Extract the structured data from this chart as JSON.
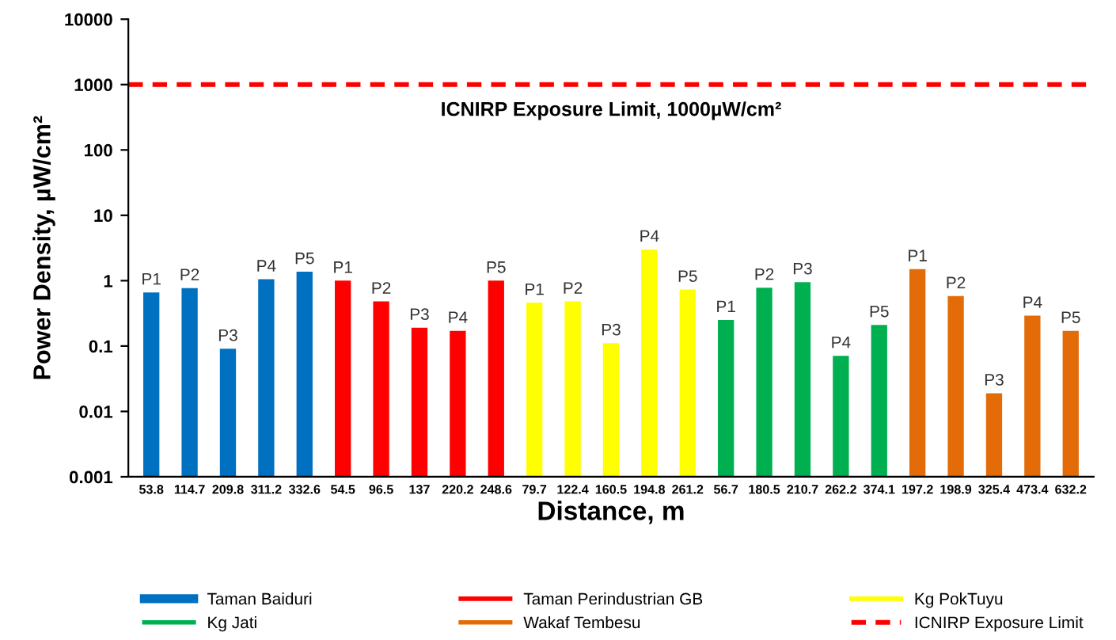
{
  "chart_data": {
    "type": "bar",
    "xlabel": "Distance, m",
    "ylabel": "Power Density, µW/cm²",
    "categories": [
      "53.8",
      "114.7",
      "209.8",
      "311.2",
      "332.6",
      "54.5",
      "96.5",
      "137",
      "220.2",
      "248.6",
      "79.7",
      "122.4",
      "160.5",
      "194.8",
      "261.2",
      "56.7",
      "180.5",
      "210.7",
      "262.2",
      "374.1",
      "197.2",
      "198.9",
      "325.4",
      "473.4",
      "632.2"
    ],
    "series": [
      {
        "name": "Taman Baiduri",
        "color": "#0070c0",
        "values": [
          0.66,
          0.77,
          0.09,
          1.05,
          1.37,
          null,
          null,
          null,
          null,
          null,
          null,
          null,
          null,
          null,
          null,
          null,
          null,
          null,
          null,
          null,
          null,
          null,
          null,
          null,
          null
        ],
        "value_labels": [
          "P1",
          "P2",
          "P3",
          "P4",
          "P5",
          null,
          null,
          null,
          null,
          null,
          null,
          null,
          null,
          null,
          null,
          null,
          null,
          null,
          null,
          null,
          null,
          null,
          null,
          null,
          null
        ]
      },
      {
        "name": "Taman Perindustrian GB",
        "color": "#ff0000",
        "values": [
          null,
          null,
          null,
          null,
          null,
          1.0,
          0.48,
          0.19,
          0.17,
          1.0,
          null,
          null,
          null,
          null,
          null,
          null,
          null,
          null,
          null,
          null,
          null,
          null,
          null,
          null,
          null
        ],
        "value_labels": [
          null,
          null,
          null,
          null,
          null,
          "P1",
          "P2",
          "P3",
          "P4",
          "P5",
          null,
          null,
          null,
          null,
          null,
          null,
          null,
          null,
          null,
          null,
          null,
          null,
          null,
          null,
          null
        ]
      },
      {
        "name": "Kg PokTuyu",
        "color": "#ffff00",
        "values": [
          null,
          null,
          null,
          null,
          null,
          null,
          null,
          null,
          null,
          null,
          0.46,
          0.48,
          0.11,
          3.0,
          0.73,
          null,
          null,
          null,
          null,
          null,
          null,
          null,
          null,
          null,
          null
        ],
        "value_labels": [
          null,
          null,
          null,
          null,
          null,
          null,
          null,
          null,
          null,
          null,
          "P1",
          "P2",
          "P3",
          "P4",
          "P5",
          null,
          null,
          null,
          null,
          null,
          null,
          null,
          null,
          null,
          null
        ]
      },
      {
        "name": "Kg Jati",
        "color": "#00b050",
        "values": [
          null,
          null,
          null,
          null,
          null,
          null,
          null,
          null,
          null,
          null,
          null,
          null,
          null,
          null,
          null,
          0.25,
          0.78,
          0.95,
          0.07,
          0.21,
          null,
          null,
          null,
          null,
          null
        ],
        "value_labels": [
          null,
          null,
          null,
          null,
          null,
          null,
          null,
          null,
          null,
          null,
          null,
          null,
          null,
          null,
          null,
          "P1",
          "P2",
          "P3",
          "P4",
          "P5",
          null,
          null,
          null,
          null,
          null
        ]
      },
      {
        "name": "Wakaf Tembesu",
        "color": "#e36c09",
        "values": [
          null,
          null,
          null,
          null,
          null,
          null,
          null,
          null,
          null,
          null,
          null,
          null,
          null,
          null,
          null,
          null,
          null,
          null,
          null,
          null,
          1.5,
          0.58,
          0.018,
          0.29,
          0.17
        ],
        "value_labels": [
          null,
          null,
          null,
          null,
          null,
          null,
          null,
          null,
          null,
          null,
          null,
          null,
          null,
          null,
          null,
          null,
          null,
          null,
          null,
          null,
          "P1",
          "P2",
          "P3",
          "P4",
          "P5"
        ]
      }
    ],
    "ref_lines": [
      {
        "axis": "y",
        "value": 1000,
        "label": "ICNIRP Exposure Limit",
        "color": "#ff0000",
        "line_style": "dashed"
      }
    ],
    "annotations": [
      "ICNIRP Exposure Limit, 1000µW/cm²"
    ],
    "log": "y",
    "ylim": [
      0.001,
      10000
    ],
    "yticks": [
      0.001,
      0.01,
      0.1,
      1,
      10,
      100,
      1000,
      10000
    ],
    "grid": false,
    "legend": "bottom"
  }
}
